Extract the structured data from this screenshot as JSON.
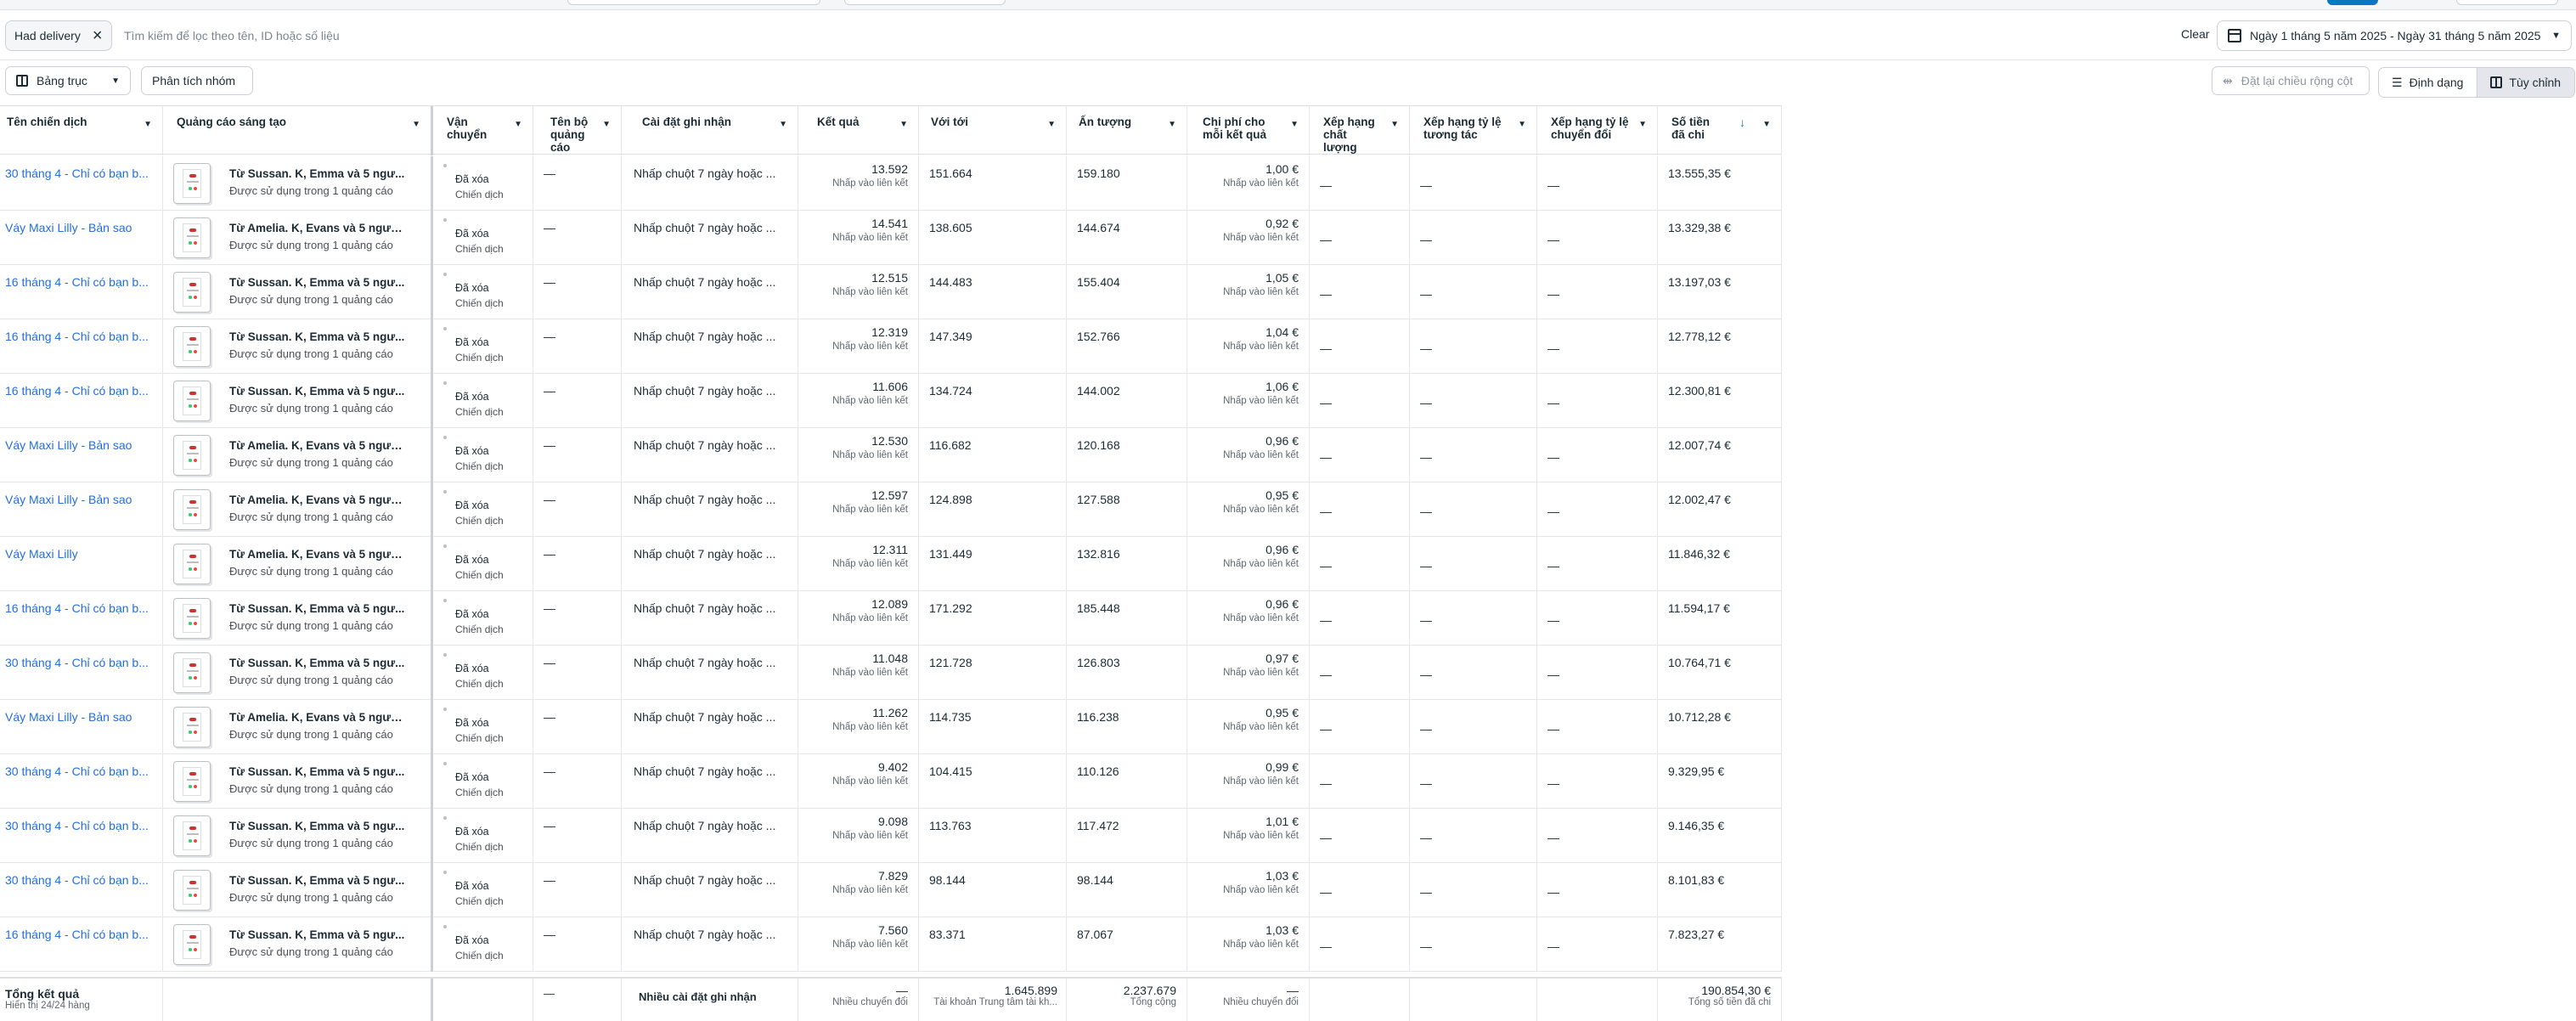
{
  "filter": {
    "chip_label": "Had delivery",
    "search_placeholder": "Tìm kiếm để lọc theo tên, ID hoặc số liệu",
    "clear_label": "Clear",
    "date_range": "Ngày 1 tháng 5 năm 2025 - Ngày 31 tháng 5 năm 2025"
  },
  "toolbar": {
    "table_view": "Bảng trục",
    "group_analysis": "Phân tích nhóm",
    "reset_columns": "Đặt lại chiều rộng cột",
    "format": "Định dạng",
    "customize": "Tùy chỉnh"
  },
  "columns": {
    "campaign_name": "Tên chiến dịch",
    "creative": "Quảng cáo sáng tạo",
    "delivery": "Vận chuyển",
    "ad_set_name": "Tên bộ quảng cáo",
    "attribution": "Cài đặt ghi nhận",
    "results": "Kết quả",
    "reach": "Với tới",
    "impressions": "Ấn tượng",
    "cost_per_result": "Chi phí cho mỗi kết quả",
    "quality_ranking": "Xếp hạng chất lượng",
    "engagement_ranking": "Xếp hạng tỷ lệ tương tác",
    "conversion_ranking": "Xếp hạng tỷ lệ chuyển đổi",
    "amount_spent": "Số tiền đã chi"
  },
  "common": {
    "creative_sub": "Được sử dụng trong 1 quảng cáo",
    "delivery_status": "Đã xóa",
    "delivery_sub": "Chiến dịch",
    "dash": "—",
    "attribution_value": "Nhấp chuột 7 ngày hoặc ...",
    "result_sub": "Nhấp vào liên kết"
  },
  "rows": [
    {
      "campaign": "30 tháng 4 - Chỉ có bạn b...",
      "creative": "Từ Sussan. K, Emma và 5 ngư...",
      "results": "13.592",
      "reach": "151.664",
      "impressions": "159.180",
      "cpr": "1,00 €",
      "spent": "13.555,35 €"
    },
    {
      "campaign": "Váy Maxi Lilly - Bản sao",
      "creative": "Từ Amelia. K, Evans và 5 người...",
      "results": "14.541",
      "reach": "138.605",
      "impressions": "144.674",
      "cpr": "0,92 €",
      "spent": "13.329,38 €"
    },
    {
      "campaign": "16 tháng 4 - Chỉ có bạn b...",
      "creative": "Từ Sussan. K, Emma và 5 ngư...",
      "results": "12.515",
      "reach": "144.483",
      "impressions": "155.404",
      "cpr": "1,05 €",
      "spent": "13.197,03 €"
    },
    {
      "campaign": "16 tháng 4 - Chỉ có bạn b...",
      "creative": "Từ Sussan. K, Emma và 5 ngư...",
      "results": "12.319",
      "reach": "147.349",
      "impressions": "152.766",
      "cpr": "1,04 €",
      "spent": "12.778,12 €"
    },
    {
      "campaign": "16 tháng 4 - Chỉ có bạn b...",
      "creative": "Từ Sussan. K, Emma và 5 ngư...",
      "results": "11.606",
      "reach": "134.724",
      "impressions": "144.002",
      "cpr": "1,06 €",
      "spent": "12.300,81 €"
    },
    {
      "campaign": "Váy Maxi Lilly - Bản sao",
      "creative": "Từ Amelia. K, Evans và 5 ngườ...",
      "results": "12.530",
      "reach": "116.682",
      "impressions": "120.168",
      "cpr": "0,96 €",
      "spent": "12.007,74 €"
    },
    {
      "campaign": "Váy Maxi Lilly - Bản sao",
      "creative": "Từ Amelia. K, Evans và 5 ngườ...",
      "results": "12.597",
      "reach": "124.898",
      "impressions": "127.588",
      "cpr": "0,95 €",
      "spent": "12.002,47 €"
    },
    {
      "campaign": "Váy Maxi Lilly",
      "creative": "Từ Amelia. K, Evans và 5 ngườ...",
      "results": "12.311",
      "reach": "131.449",
      "impressions": "132.816",
      "cpr": "0,96 €",
      "spent": "11.846,32 €"
    },
    {
      "campaign": "16 tháng 4 - Chỉ có bạn b...",
      "creative": "Từ Sussan. K, Emma và 5 ngư...",
      "results": "12.089",
      "reach": "171.292",
      "impressions": "185.448",
      "cpr": "0,96 €",
      "spent": "11.594,17 €"
    },
    {
      "campaign": "30 tháng 4 - Chỉ có bạn b...",
      "creative": "Từ Sussan. K, Emma và 5 ngư...",
      "results": "11.048",
      "reach": "121.728",
      "impressions": "126.803",
      "cpr": "0,97 €",
      "spent": "10.764,71 €"
    },
    {
      "campaign": "Váy Maxi Lilly - Bản sao",
      "creative": "Từ Amelia. K, Evans và 5 ngườ...",
      "results": "11.262",
      "reach": "114.735",
      "impressions": "116.238",
      "cpr": "0,95 €",
      "spent": "10.712,28 €"
    },
    {
      "campaign": "30 tháng 4 - Chỉ có bạn b...",
      "creative": "Từ Sussan. K, Emma và 5 ngư...",
      "results": "9.402",
      "reach": "104.415",
      "impressions": "110.126",
      "cpr": "0,99 €",
      "spent": "9.329,95 €"
    },
    {
      "campaign": "30 tháng 4 - Chỉ có bạn b...",
      "creative": "Từ Sussan. K, Emma và 5 ngư...",
      "results": "9.098",
      "reach": "113.763",
      "impressions": "117.472",
      "cpr": "1,01 €",
      "spent": "9.146,35 €"
    },
    {
      "campaign": "30 tháng 4 - Chỉ có bạn b...",
      "creative": "Từ Sussan. K, Emma và 5 ngư...",
      "results": "7.829",
      "reach": "98.144",
      "impressions": "98.144",
      "cpr": "1,03 €",
      "spent": "8.101,83 €"
    },
    {
      "campaign": "16 tháng 4 - Chỉ có bạn b...",
      "creative": "Từ Sussan. K, Emma và 5 ngư...",
      "results": "7.560",
      "reach": "83.371",
      "impressions": "87.067",
      "cpr": "1,03 €",
      "spent": "7.823,27 €"
    }
  ],
  "totals": {
    "label": "Tổng kết quả",
    "sub": "Hiển thị 24/24 hàng",
    "attribution": "Nhiều cài đặt ghi nhận",
    "results": "—",
    "results_sub": "Nhiều chuyển đổi",
    "reach": "1.645.899",
    "reach_sub": "Tài khoản Trung tâm tài kh...",
    "impressions": "2.237.679",
    "impressions_sub": "Tổng cộng",
    "cpr": "—",
    "cpr_sub": "Nhiều chuyển đổi",
    "spent": "190.854,30 €",
    "spent_sub": "Tổng số tiền đã chi"
  }
}
